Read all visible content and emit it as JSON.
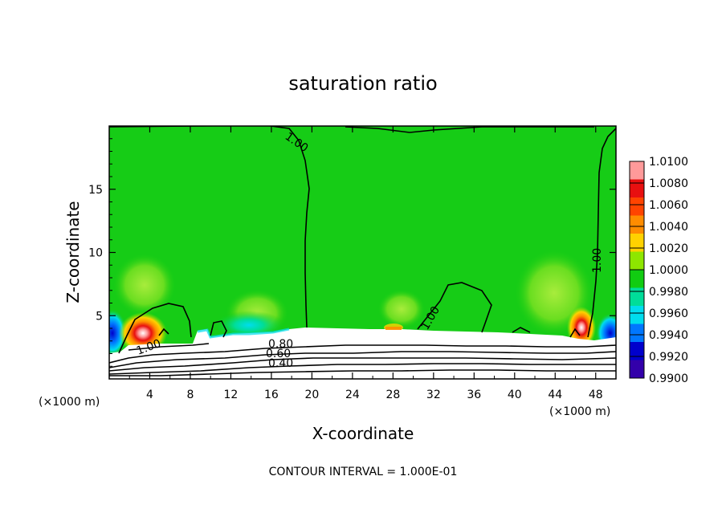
{
  "chart_data": {
    "type": "heatmap",
    "title": "saturation ratio",
    "xlabel": "X-coordinate",
    "ylabel": "Z-coordinate",
    "x_unit": "(×1000 m)",
    "xlim": [
      0,
      50
    ],
    "ylim": [
      0,
      20
    ],
    "x_ticks": [
      4,
      8,
      12,
      16,
      20,
      24,
      28,
      32,
      36,
      40,
      44,
      48
    ],
    "y_ticks": [
      5,
      10,
      15
    ],
    "colorbar": {
      "levels": [
        "1.0100",
        "1.0080",
        "1.0060",
        "1.0040",
        "1.0020",
        "1.0000",
        "0.9980",
        "0.9960",
        "0.9940",
        "0.9920",
        "0.9900"
      ],
      "colors": [
        "#ff9a9a",
        "#e81010",
        "#ff4400",
        "#ff8c00",
        "#ffd200",
        "#8ee600",
        "#11cc11",
        "#00dd99",
        "#00ddee",
        "#0077ff",
        "#0000cc",
        "#3300aa"
      ]
    },
    "contour_labels": [
      {
        "text": "1.00",
        "x": 15.9,
        "z": 19.6,
        "angle": 35
      },
      {
        "text": "1.00",
        "x": 48.0,
        "z": 9.7,
        "angle": -90
      },
      {
        "text": "1.00",
        "x": 31.0,
        "z": 4.5,
        "angle": -60
      },
      {
        "text": "1.00",
        "x": 4.0,
        "z": 2.5,
        "angle": -20
      },
      {
        "text": "0.80",
        "x": 17.3,
        "z": 2.6,
        "angle": 0
      },
      {
        "text": "0.60",
        "x": 16.9,
        "z": 2.1,
        "angle": 0
      },
      {
        "text": "0.40",
        "x": 17.3,
        "z": 1.2,
        "angle": 0
      }
    ],
    "footer": "CONTOUR INTERVAL = 1.000E-01",
    "grid": false,
    "legend_position": "right colorbar"
  }
}
